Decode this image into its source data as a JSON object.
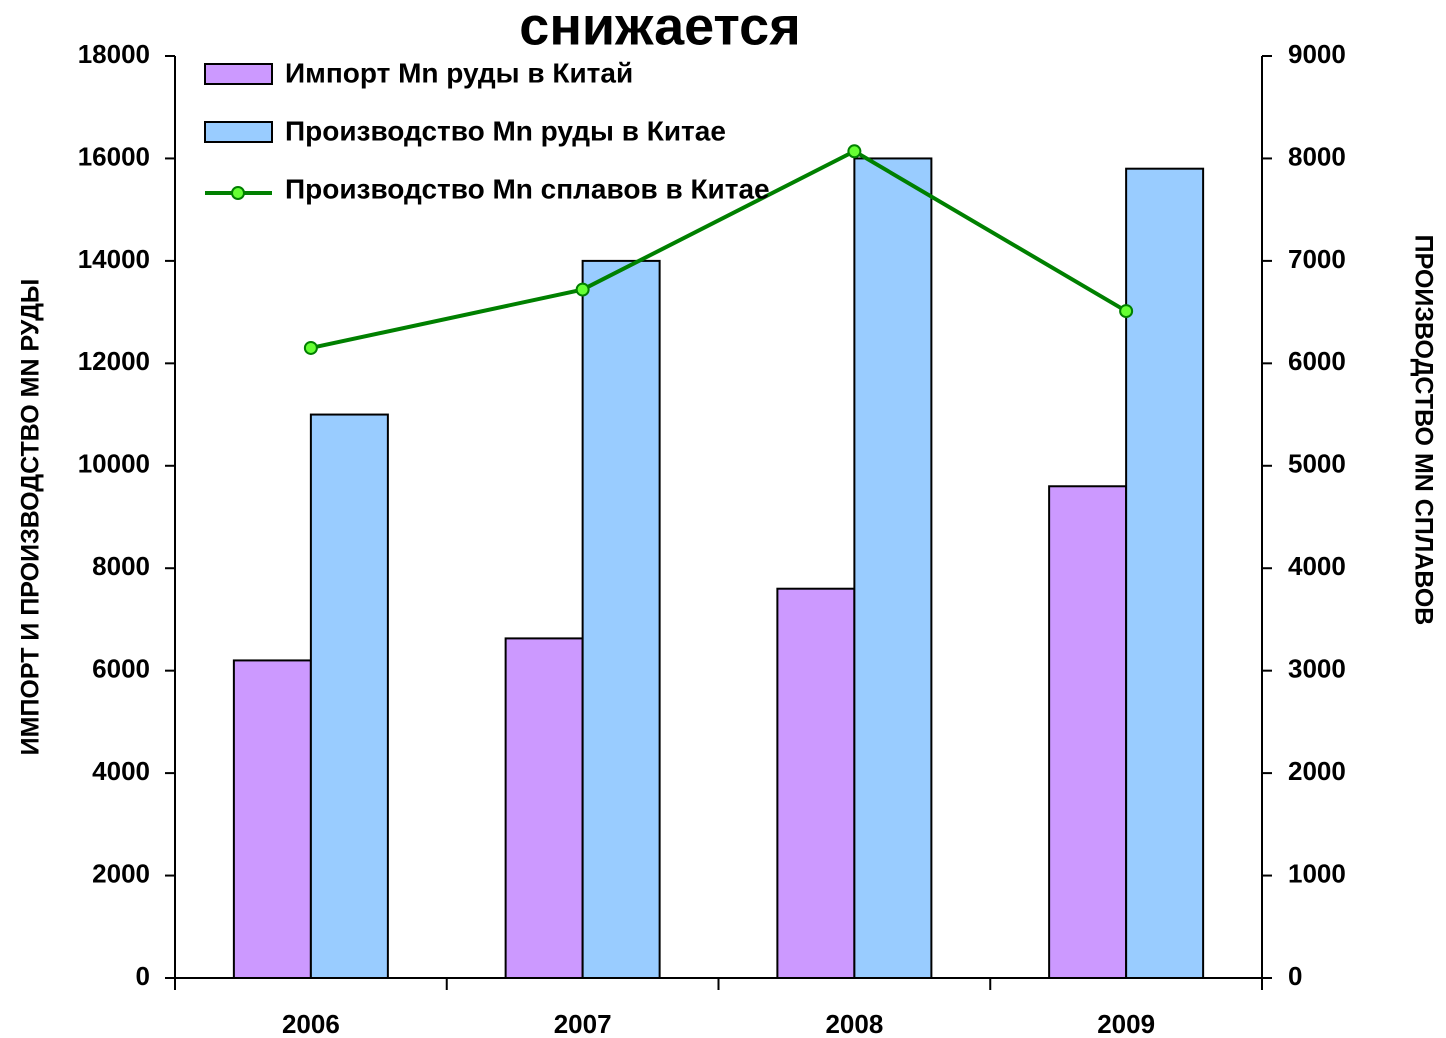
{
  "chart_data": {
    "type": "bar",
    "title": "снижается",
    "y_label": "ИМПОРТ И ПРОИЗВОДСТВО MN РУДЫ",
    "y2_label": "ПРОИЗВОДСТВО MN СПЛАВОВ",
    "categories": [
      "2006",
      "2007",
      "2008",
      "2009"
    ],
    "series": [
      {
        "name": "Импорт Mn руды в Китай",
        "color": "#cc99ff",
        "values": [
          6200,
          6630,
          7600,
          9600
        ]
      },
      {
        "name": "Производство Mn руды в Китае",
        "color": "#99ccff",
        "values": [
          11000,
          14000,
          16000,
          15800
        ]
      },
      {
        "name": "Производство Mn сплавов в Китае",
        "type": "line",
        "axis": "y2",
        "color": "#008000",
        "marker_color": "#66ff33",
        "values": [
          6150,
          6720,
          8070,
          6510
        ]
      }
    ],
    "ylim": [
      0,
      18000
    ],
    "yticks": [
      0,
      2000,
      4000,
      6000,
      8000,
      10000,
      12000,
      14000,
      16000,
      18000
    ],
    "y2lim": [
      0,
      9000
    ],
    "y2ticks": [
      0,
      1000,
      2000,
      3000,
      4000,
      5000,
      6000,
      7000,
      8000,
      9000
    ],
    "legend": "upper left"
  }
}
